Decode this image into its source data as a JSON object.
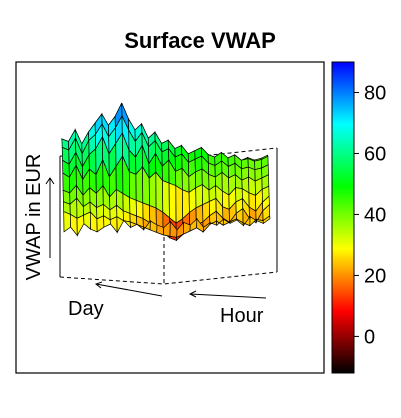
{
  "chart_data": {
    "type": "surface",
    "title": "Surface VWAP",
    "xlabel": "Day",
    "ylabel": "Hour",
    "zlabel": "VWAP in EUR",
    "colorbar": {
      "range": [
        -12,
        90
      ],
      "ticks": [
        0,
        20,
        40,
        60,
        80
      ],
      "colormap": [
        "#000000",
        "#ff0000",
        "#ffff00",
        "#00ff00",
        "#00ffff",
        "#0000ff"
      ]
    },
    "surface": {
      "rows": 9,
      "cols": 32,
      "z": [
        [
          25,
          28,
          22,
          30,
          26,
          24,
          27,
          29,
          23,
          31,
          26,
          28,
          24,
          30,
          27,
          25,
          29,
          23,
          28,
          26,
          30,
          24,
          27,
          25,
          29,
          26,
          28,
          24,
          30,
          27,
          25,
          28
        ],
        [
          35,
          33,
          30,
          32,
          34,
          29,
          31,
          28,
          30,
          27,
          26,
          24,
          22,
          20,
          18,
          16,
          15,
          14,
          16,
          18,
          20,
          17,
          22,
          24,
          21,
          23,
          25,
          22,
          20,
          24,
          23,
          26
        ],
        [
          38,
          36,
          40,
          34,
          37,
          33,
          35,
          31,
          34,
          30,
          28,
          26,
          24,
          21,
          18,
          14,
          10,
          8,
          12,
          15,
          18,
          20,
          24,
          27,
          22,
          19,
          25,
          28,
          21,
          18,
          26,
          30
        ],
        [
          42,
          40,
          45,
          38,
          43,
          39,
          44,
          36,
          41,
          38,
          35,
          33,
          31,
          29,
          27,
          24,
          20,
          16,
          19,
          23,
          26,
          28,
          30,
          32,
          26,
          24,
          29,
          31,
          25,
          22,
          28,
          32
        ],
        [
          50,
          47,
          55,
          45,
          52,
          48,
          58,
          46,
          53,
          60,
          49,
          47,
          52,
          44,
          48,
          42,
          40,
          38,
          35,
          33,
          36,
          38,
          34,
          37,
          33,
          30,
          35,
          34,
          31,
          29,
          33,
          35
        ],
        [
          55,
          52,
          60,
          50,
          58,
          62,
          70,
          58,
          65,
          72,
          60,
          55,
          63,
          50,
          57,
          48,
          52,
          44,
          46,
          40,
          43,
          45,
          41,
          39,
          42,
          38,
          40,
          36,
          38,
          35,
          37,
          39
        ],
        [
          60,
          58,
          66,
          55,
          64,
          68,
          75,
          66,
          72,
          80,
          70,
          62,
          68,
          58,
          62,
          54,
          56,
          50,
          52,
          46,
          48,
          50,
          45,
          43,
          46,
          42,
          44,
          40,
          41,
          39,
          40,
          42
        ],
        [
          62,
          60,
          68,
          58,
          66,
          72,
          78,
          70,
          76,
          85,
          74,
          66,
          70,
          60,
          64,
          56,
          58,
          52,
          54,
          48,
          50,
          52,
          47,
          45,
          48,
          44,
          46,
          42,
          43,
          41,
          42,
          44
        ],
        [
          58,
          56,
          62,
          54,
          60,
          66,
          72,
          64,
          70,
          78,
          68,
          60,
          64,
          55,
          58,
          50,
          53,
          47,
          49,
          44,
          46,
          48,
          43,
          41,
          44,
          40,
          42,
          38,
          40,
          38,
          39,
          41
        ]
      ]
    }
  }
}
